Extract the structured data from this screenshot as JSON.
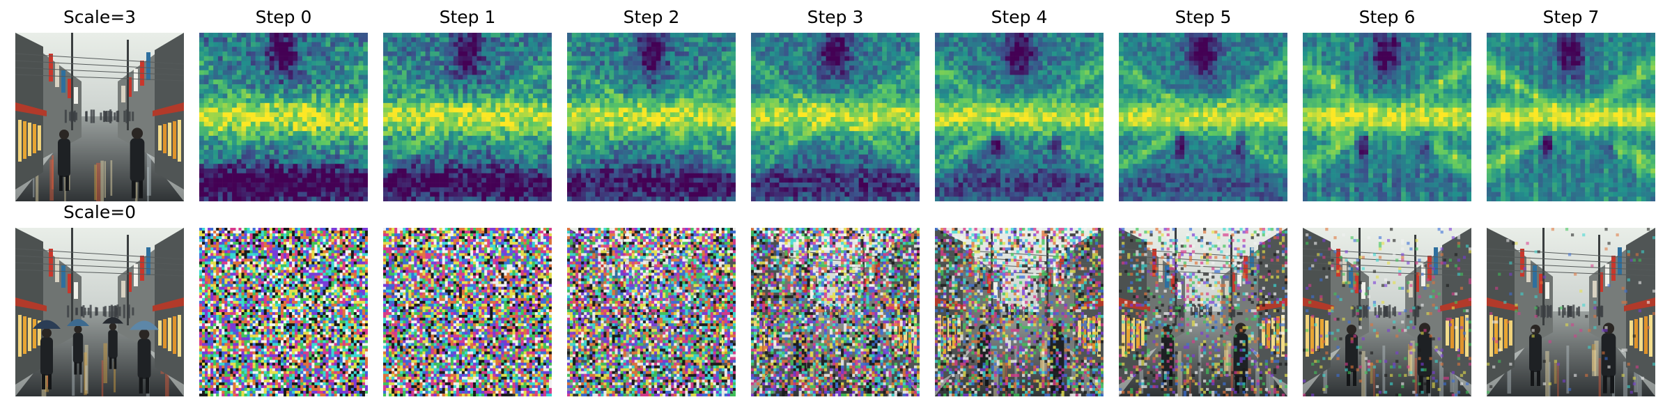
{
  "rows": [
    {
      "id": "guided",
      "label": "Scale=3",
      "kind": "attention"
    },
    {
      "id": "unguided",
      "label": "Scale=0",
      "kind": "image"
    }
  ],
  "columns": [
    "Step 0",
    "Step 1",
    "Step 2",
    "Step 3",
    "Step 4",
    "Step 5",
    "Step 6",
    "Step 7"
  ],
  "reference_images": [
    {
      "row": "guided",
      "subject": "rainy city street with pedestrians and storefront signs"
    },
    {
      "row": "unguided",
      "subject": "rainy city street with pedestrians holding umbrellas"
    }
  ],
  "colormap": {
    "name": "viridis",
    "stops": [
      "#440154",
      "#3b528b",
      "#21918c",
      "#5ec962",
      "#fde725"
    ]
  },
  "noise_levels": [
    1.0,
    0.96,
    0.86,
    0.7,
    0.52,
    0.3,
    0.1,
    0.03
  ]
}
